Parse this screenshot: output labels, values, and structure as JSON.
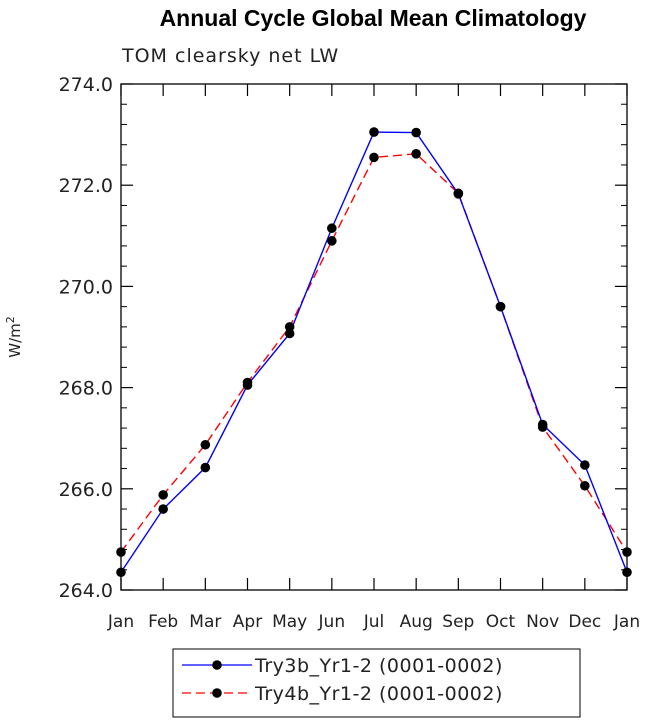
{
  "chart_data": {
    "type": "line",
    "title": "Annual Cycle Global Mean Climatology",
    "subtitle": "TOM clearsky net LW",
    "ylabel_base": "W/m",
    "ylabel_sup": "2",
    "categories": [
      "Jan",
      "Feb",
      "Mar",
      "Apr",
      "May",
      "Jun",
      "Jul",
      "Aug",
      "Sep",
      "Oct",
      "Nov",
      "Dec",
      "Jan"
    ],
    "ylim": [
      264.0,
      274.0
    ],
    "yticks": [
      "264.0",
      "266.0",
      "268.0",
      "270.0",
      "272.0",
      "274.0"
    ],
    "ytick_values": [
      264,
      266,
      268,
      270,
      272,
      274
    ],
    "series": [
      {
        "name": "Try3b_Yr1-2 (0001-0002)",
        "color": "#0000ff",
        "dash": "solid",
        "values": [
          264.35,
          265.6,
          266.42,
          268.05,
          269.07,
          271.15,
          273.05,
          273.04,
          271.83,
          269.6,
          267.27,
          266.47,
          264.35
        ]
      },
      {
        "name": "Try4b_Yr1-2 (0001-0002)",
        "color": "#ff0000",
        "dash": "dashed",
        "values": [
          264.75,
          265.88,
          266.87,
          268.1,
          269.2,
          270.9,
          272.55,
          272.62,
          271.84,
          269.6,
          267.22,
          266.06,
          264.75
        ]
      }
    ]
  }
}
